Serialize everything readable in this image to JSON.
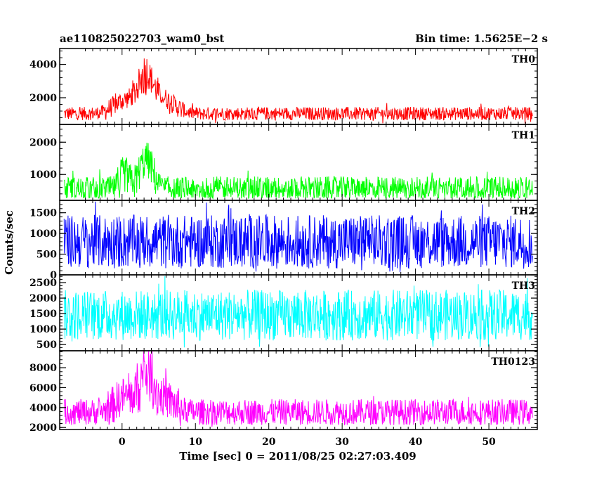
{
  "header": {
    "left_title": "ae110825022703_wam0_bst",
    "right_title": "Bin time: 1.5625E−2 s"
  },
  "axes": {
    "xlabel": "Time [sec] 0 = 2011/08/25 02:27:03.409",
    "ylabel": "Counts/sec"
  },
  "chart_data": {
    "type": "line",
    "x_range": [
      -8.5,
      56.6
    ],
    "x_ticks": [
      0,
      10,
      20,
      30,
      40,
      50
    ],
    "panels": [
      {
        "name": "TH0",
        "color": "#ff0000",
        "ylim": [
          400,
          4950
        ],
        "yticks": [
          2000,
          4000
        ],
        "baseline": 1050,
        "noise": 400,
        "bursts": [
          {
            "t": 0.5,
            "height": 800,
            "width": 1.6
          },
          {
            "t": 3.2,
            "height": 1900,
            "width": 1.0
          },
          {
            "t": 5.5,
            "height": 900,
            "width": 1.6
          }
        ],
        "min_floor": 450
      },
      {
        "name": "TH1",
        "color": "#00ff00",
        "ylim": [
          200,
          2550
        ],
        "yticks": [
          1000,
          2000
        ],
        "baseline": 560,
        "noise": 380,
        "bursts": [
          {
            "t": 0.3,
            "height": 450,
            "width": 0.6
          },
          {
            "t": 3.3,
            "height": 900,
            "width": 0.9
          }
        ],
        "min_floor": 260
      },
      {
        "name": "TH2",
        "color": "#0000ff",
        "ylim": [
          0,
          1800
        ],
        "yticks": [
          0,
          500,
          1000,
          1500
        ],
        "baseline": 800,
        "noise": 650,
        "bursts": [],
        "min_floor": 60
      },
      {
        "name": "TH3",
        "color": "#00ffff",
        "ylim": [
          300,
          2750
        ],
        "yticks": [
          500,
          1000,
          1500,
          2000,
          2500
        ],
        "baseline": 1450,
        "noise": 820,
        "bursts": [],
        "min_floor": 380
      },
      {
        "name": "TH0123",
        "color": "#ff00ff",
        "ylim": [
          1800,
          9700
        ],
        "yticks": [
          2000,
          4000,
          6000,
          8000
        ],
        "baseline": 3550,
        "noise": 1300,
        "bursts": [
          {
            "t": 0.4,
            "height": 1600,
            "width": 1.3
          },
          {
            "t": 3.3,
            "height": 3500,
            "width": 0.9
          },
          {
            "t": 5.5,
            "height": 1400,
            "width": 1.5
          }
        ],
        "min_floor": 2050
      }
    ]
  }
}
